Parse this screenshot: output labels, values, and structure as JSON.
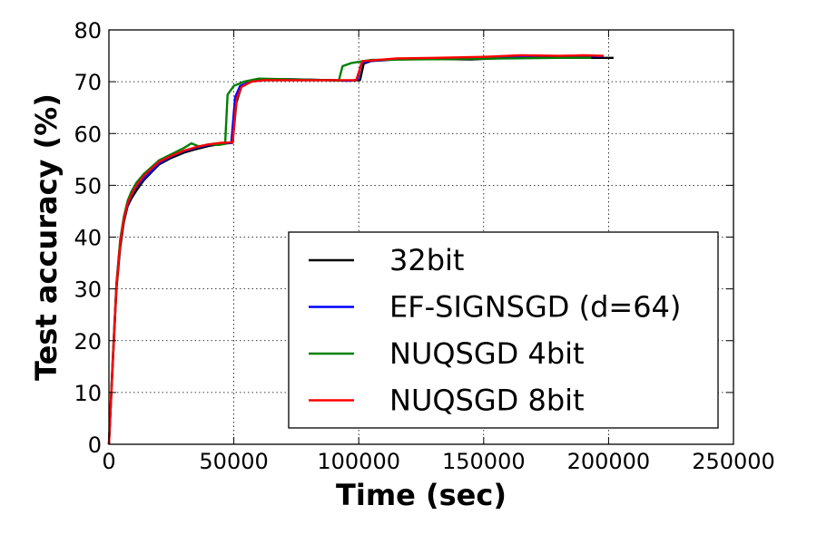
{
  "chart_data": {
    "type": "line",
    "xlabel": "Time (sec)",
    "ylabel": "Test accuracy (%)",
    "xlim": [
      0,
      250000
    ],
    "ylim": [
      0,
      80
    ],
    "xticks": [
      0,
      50000,
      100000,
      150000,
      200000,
      250000
    ],
    "yticks": [
      0,
      10,
      20,
      30,
      40,
      50,
      60,
      70,
      80
    ],
    "grid": true,
    "legend_position": "lower-right",
    "series": [
      {
        "name": "32bit",
        "color": "#000000",
        "points": [
          [
            0,
            0
          ],
          [
            1500,
            15
          ],
          [
            3000,
            30
          ],
          [
            4500,
            38
          ],
          [
            6000,
            43
          ],
          [
            7500,
            46
          ],
          [
            9000,
            47.5
          ],
          [
            11000,
            49
          ],
          [
            14000,
            51
          ],
          [
            17000,
            52.5
          ],
          [
            20000,
            54
          ],
          [
            25000,
            55.3
          ],
          [
            30000,
            56.3
          ],
          [
            35000,
            57
          ],
          [
            40000,
            57.6
          ],
          [
            45000,
            58
          ],
          [
            49500,
            58.2
          ],
          [
            51000,
            66
          ],
          [
            53000,
            69
          ],
          [
            57000,
            70
          ],
          [
            62000,
            70.3
          ],
          [
            70000,
            70.3
          ],
          [
            80000,
            70.3
          ],
          [
            90000,
            70.3
          ],
          [
            95000,
            70.2
          ],
          [
            100500,
            70.3
          ],
          [
            102000,
            73.5
          ],
          [
            105000,
            74
          ],
          [
            115000,
            74.3
          ],
          [
            130000,
            74.4
          ],
          [
            145000,
            74.3
          ],
          [
            160000,
            74.6
          ],
          [
            180000,
            74.6
          ],
          [
            195000,
            74.6
          ],
          [
            202000,
            74.6
          ]
        ]
      },
      {
        "name": "EF-SIGNSGD (d=64)",
        "color": "#0000ff",
        "points": [
          [
            0,
            0
          ],
          [
            1500,
            16
          ],
          [
            3000,
            31
          ],
          [
            4500,
            39
          ],
          [
            6000,
            43.5
          ],
          [
            7500,
            46.3
          ],
          [
            9000,
            48
          ],
          [
            11000,
            49.8
          ],
          [
            14000,
            51.3
          ],
          [
            17000,
            52.7
          ],
          [
            20000,
            54.2
          ],
          [
            25000,
            55.6
          ],
          [
            30000,
            56.6
          ],
          [
            35000,
            57.3
          ],
          [
            40000,
            57.8
          ],
          [
            45000,
            58.1
          ],
          [
            49000,
            58.2
          ],
          [
            50500,
            67
          ],
          [
            52500,
            69.2
          ],
          [
            57000,
            70.1
          ],
          [
            63000,
            70.4
          ],
          [
            72000,
            70.5
          ],
          [
            80000,
            70.4
          ],
          [
            88000,
            70.3
          ],
          [
            97000,
            70.2
          ],
          [
            99500,
            70.4
          ],
          [
            101000,
            73.5
          ],
          [
            104000,
            74
          ],
          [
            115000,
            74.4
          ],
          [
            130000,
            74.5
          ],
          [
            150000,
            74.6
          ],
          [
            170000,
            75
          ],
          [
            185000,
            74.9
          ],
          [
            198000,
            74.9
          ]
        ]
      },
      {
        "name": "NUQSGD 4bit",
        "color": "#008000",
        "points": [
          [
            0,
            0
          ],
          [
            1500,
            16
          ],
          [
            3000,
            31
          ],
          [
            4500,
            39.5
          ],
          [
            6000,
            44
          ],
          [
            7500,
            47
          ],
          [
            9000,
            48.8
          ],
          [
            11000,
            50.5
          ],
          [
            14000,
            52.2
          ],
          [
            17000,
            53.5
          ],
          [
            20000,
            54.8
          ],
          [
            25000,
            56
          ],
          [
            30000,
            57.2
          ],
          [
            33000,
            58.1
          ],
          [
            36000,
            57.5
          ],
          [
            40000,
            57.9
          ],
          [
            44000,
            57.8
          ],
          [
            46500,
            58
          ],
          [
            47500,
            67.5
          ],
          [
            50000,
            69.2
          ],
          [
            54000,
            70
          ],
          [
            60000,
            70.6
          ],
          [
            70000,
            70.5
          ],
          [
            80000,
            70.4
          ],
          [
            88000,
            70.3
          ],
          [
            92000,
            70.2
          ],
          [
            93500,
            73
          ],
          [
            97000,
            73.6
          ],
          [
            105000,
            74.2
          ],
          [
            120000,
            74.3
          ],
          [
            140000,
            74.4
          ],
          [
            160000,
            74.5
          ],
          [
            180000,
            74.6
          ],
          [
            193000,
            74.6
          ]
        ]
      },
      {
        "name": "NUQSGD 8bit",
        "color": "#ff0000",
        "points": [
          [
            0,
            0
          ],
          [
            1500,
            15.5
          ],
          [
            3000,
            30.5
          ],
          [
            4500,
            38.8
          ],
          [
            6000,
            43.5
          ],
          [
            7500,
            46.5
          ],
          [
            9000,
            48.2
          ],
          [
            11000,
            50
          ],
          [
            14000,
            51.8
          ],
          [
            17000,
            53.2
          ],
          [
            20000,
            54.5
          ],
          [
            25000,
            55.7
          ],
          [
            30000,
            56.7
          ],
          [
            35000,
            57.4
          ],
          [
            40000,
            57.9
          ],
          [
            45000,
            58.2
          ],
          [
            49500,
            58.3
          ],
          [
            51000,
            66.5
          ],
          [
            53000,
            69
          ],
          [
            57000,
            70
          ],
          [
            62000,
            70.3
          ],
          [
            70000,
            70.3
          ],
          [
            80000,
            70.3
          ],
          [
            90000,
            70.3
          ],
          [
            99000,
            70.3
          ],
          [
            101500,
            74
          ],
          [
            105000,
            74.1
          ],
          [
            115000,
            74.5
          ],
          [
            130000,
            74.6
          ],
          [
            150000,
            74.8
          ],
          [
            165000,
            75.1
          ],
          [
            180000,
            75
          ],
          [
            190000,
            75.1
          ],
          [
            198000,
            75
          ]
        ]
      }
    ]
  }
}
